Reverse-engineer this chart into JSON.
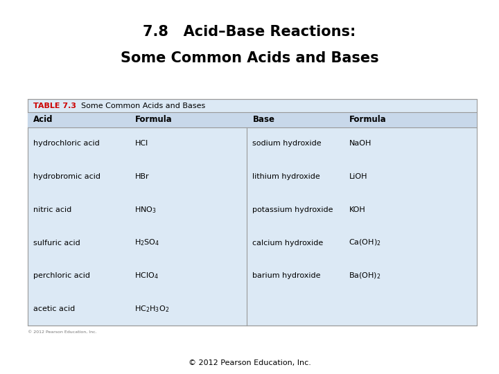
{
  "title_line1": "7.8   Acid–Base Reactions:",
  "title_line2": "Some Common Acids and Bases",
  "table_title_bold": "TABLE 7.3",
  "table_title_bold_color": "#cc0000",
  "table_title_normal": "Some Common Acids and Bases",
  "col_headers": [
    "Acid",
    "Formula",
    "Base",
    "Formula"
  ],
  "acid_names": [
    "hydrochloric acid",
    "hydrobromic acid",
    "nitric acid",
    "sulfuric acid",
    "perchloric acid",
    "acetic acid"
  ],
  "acid_formulas_text": [
    "HCl",
    "HBr",
    "HNO$_3$",
    "H$_2$SO$_4$",
    "HClO$_4$",
    "HC$_2$H$_3$O$_2$"
  ],
  "base_names": [
    "sodium hydroxide",
    "lithium hydroxide",
    "potassium hydroxide",
    "calcium hydroxide",
    "barium hydroxide",
    ""
  ],
  "base_formulas_text": [
    "NaOH",
    "LiOH",
    "KOH",
    "Ca(OH)$_2$",
    "Ba(OH)$_2$",
    ""
  ],
  "background_color": "#ffffff",
  "table_bg_color": "#dce9f5",
  "header_row_color": "#c8d8ea",
  "line_color": "#999999",
  "copyright": "© 2012 Pearson Education, Inc.",
  "small_copyright": "© 2012 Pearson Education, Inc."
}
